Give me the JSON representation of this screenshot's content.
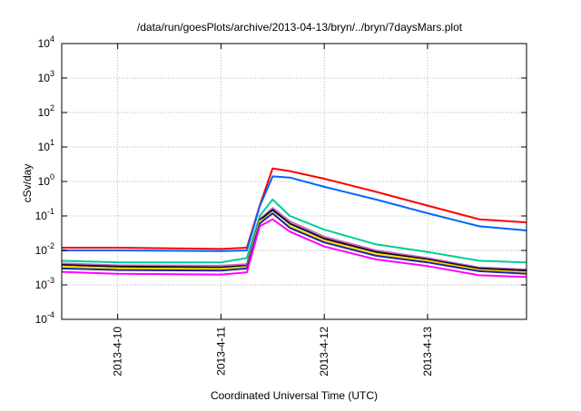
{
  "chart_data": {
    "type": "line",
    "title": "/data/run/goesPlots/archive/2013-04-13/bryn/../bryn/7daysMars.plot",
    "xlabel": "Coordinated Universal Time (UTC)",
    "ylabel": "cSv/day",
    "yscale": "log",
    "ylim": [
      0.0001,
      10000
    ],
    "xlim": [
      "2013-04-09 11:00",
      "2013-04-13 23:00"
    ],
    "grid": true,
    "y_ticks": [
      {
        "base": "10",
        "exp": "-4",
        "value": 0.0001
      },
      {
        "base": "10",
        "exp": "-3",
        "value": 0.001
      },
      {
        "base": "10",
        "exp": "-2",
        "value": 0.01
      },
      {
        "base": "10",
        "exp": "-1",
        "value": 0.1
      },
      {
        "base": "10",
        "exp": "0",
        "value": 1
      },
      {
        "base": "10",
        "exp": "1",
        "value": 10
      },
      {
        "base": "10",
        "exp": "2",
        "value": 100
      },
      {
        "base": "10",
        "exp": "3",
        "value": 1000
      },
      {
        "base": "10",
        "exp": "4",
        "value": 10000
      }
    ],
    "x_ticks": [
      {
        "label": "2013-4-10",
        "t": "2013-04-10 00:00"
      },
      {
        "label": "2013-4-11",
        "t": "2013-04-11 00:00"
      },
      {
        "label": "2013-4-12",
        "t": "2013-04-12 00:00"
      },
      {
        "label": "2013-4-13",
        "t": "2013-04-13 00:00"
      }
    ],
    "x": [
      "2013-04-09 11:00",
      "2013-04-10 00:00",
      "2013-04-11 00:00",
      "2013-04-11 06:00",
      "2013-04-11 09:00",
      "2013-04-11 12:00",
      "2013-04-11 16:00",
      "2013-04-12 00:00",
      "2013-04-12 12:00",
      "2013-04-13 00:00",
      "2013-04-13 12:00",
      "2013-04-13 23:00"
    ],
    "series": [
      {
        "color": "#ff0000",
        "values": [
          0.012,
          0.012,
          0.011,
          0.012,
          0.2,
          2.4,
          2.0,
          1.2,
          0.5,
          0.2,
          0.08,
          0.065
        ]
      },
      {
        "color": "#0066ff",
        "values": [
          0.01,
          0.01,
          0.0095,
          0.01,
          0.19,
          1.4,
          1.3,
          0.7,
          0.3,
          0.12,
          0.05,
          0.038
        ]
      },
      {
        "color": "#00cc99",
        "values": [
          0.005,
          0.0045,
          0.0045,
          0.006,
          0.1,
          0.3,
          0.1,
          0.04,
          0.015,
          0.009,
          0.005,
          0.0045
        ]
      },
      {
        "color": "#cc66cc",
        "values": [
          0.0042,
          0.0037,
          0.0036,
          0.004,
          0.08,
          0.17,
          0.07,
          0.025,
          0.01,
          0.006,
          0.0032,
          0.0028
        ]
      },
      {
        "color": "#111111",
        "values": [
          0.0038,
          0.0034,
          0.0032,
          0.0036,
          0.075,
          0.15,
          0.06,
          0.022,
          0.009,
          0.0055,
          0.003,
          0.0026
        ]
      },
      {
        "color": "#ffdd00",
        "values": [
          0.0034,
          0.003,
          0.0029,
          0.0033,
          0.07,
          0.11,
          0.05,
          0.019,
          0.008,
          0.005,
          0.0027,
          0.0023
        ]
      },
      {
        "color": "#2222aa",
        "values": [
          0.003,
          0.0027,
          0.0026,
          0.003,
          0.06,
          0.12,
          0.045,
          0.017,
          0.007,
          0.0045,
          0.0025,
          0.0021
        ]
      },
      {
        "color": "#ff00ff",
        "values": [
          0.0024,
          0.0021,
          0.002,
          0.0023,
          0.05,
          0.08,
          0.035,
          0.013,
          0.0055,
          0.0035,
          0.0019,
          0.0017
        ]
      }
    ]
  }
}
